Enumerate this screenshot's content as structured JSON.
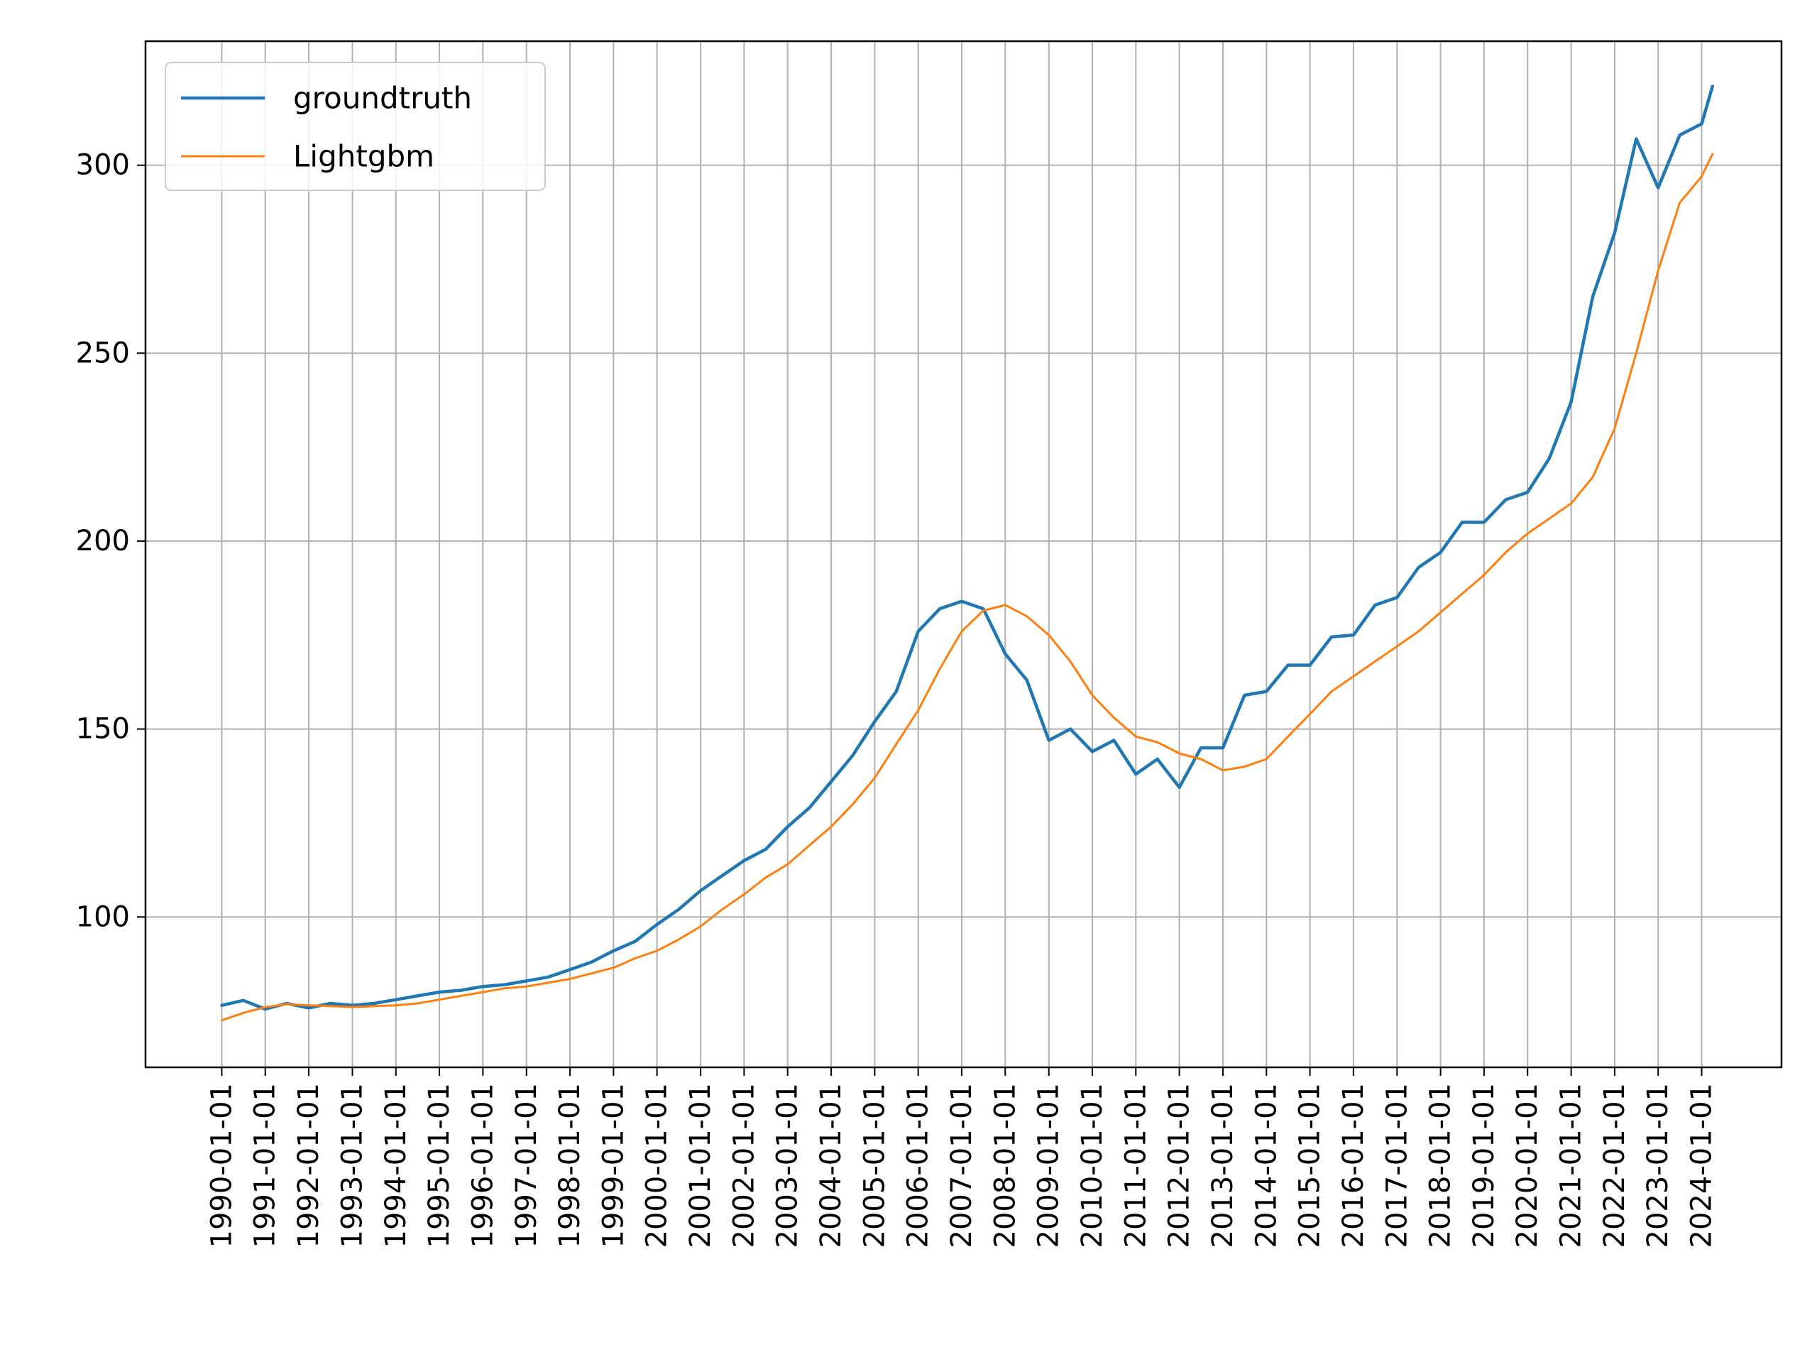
{
  "chart_data": {
    "type": "line",
    "title": "",
    "xlabel": "",
    "ylabel": "",
    "grid": true,
    "legend_position": "top-left",
    "xlim": [
      "1988-04-01",
      "2025-11-01"
    ],
    "ylim": [
      60,
      333
    ],
    "y_ticks": [
      100,
      150,
      200,
      250,
      300
    ],
    "x_ticks": [
      "1990-01-01",
      "1991-01-01",
      "1992-01-01",
      "1993-01-01",
      "1994-01-01",
      "1995-01-01",
      "1996-01-01",
      "1997-01-01",
      "1998-01-01",
      "1999-01-01",
      "2000-01-01",
      "2001-01-01",
      "2002-01-01",
      "2003-01-01",
      "2004-01-01",
      "2005-01-01",
      "2006-01-01",
      "2007-01-01",
      "2008-01-01",
      "2009-01-01",
      "2010-01-01",
      "2011-01-01",
      "2012-01-01",
      "2013-01-01",
      "2014-01-01",
      "2015-01-01",
      "2016-01-01",
      "2017-01-01",
      "2018-01-01",
      "2019-01-01",
      "2020-01-01",
      "2021-01-01",
      "2022-01-01",
      "2023-01-01",
      "2024-01-01"
    ],
    "series": [
      {
        "name": "groundtruth",
        "color": "#1f77b4",
        "points": [
          [
            "1990-01-01",
            76.5
          ],
          [
            "1990-07-01",
            77.8
          ],
          [
            "1991-01-01",
            75.5
          ],
          [
            "1991-07-01",
            77.0
          ],
          [
            "1992-01-01",
            75.8
          ],
          [
            "1992-07-01",
            77.0
          ],
          [
            "1993-01-01",
            76.5
          ],
          [
            "1993-07-01",
            77.0
          ],
          [
            "1994-01-01",
            78.0
          ],
          [
            "1994-07-01",
            79.0
          ],
          [
            "1995-01-01",
            80.0
          ],
          [
            "1995-07-01",
            80.5
          ],
          [
            "1996-01-01",
            81.5
          ],
          [
            "1996-07-01",
            82.0
          ],
          [
            "1997-01-01",
            83.0
          ],
          [
            "1997-07-01",
            84.0
          ],
          [
            "1998-01-01",
            86.0
          ],
          [
            "1998-07-01",
            88.0
          ],
          [
            "1999-01-01",
            91.0
          ],
          [
            "1999-07-01",
            93.5
          ],
          [
            "2000-01-01",
            98.0
          ],
          [
            "2000-07-01",
            102.0
          ],
          [
            "2001-01-01",
            107.0
          ],
          [
            "2001-07-01",
            111.0
          ],
          [
            "2002-01-01",
            115.0
          ],
          [
            "2002-07-01",
            118.0
          ],
          [
            "2003-01-01",
            124.0
          ],
          [
            "2003-07-01",
            129.0
          ],
          [
            "2004-01-01",
            136.0
          ],
          [
            "2004-07-01",
            143.0
          ],
          [
            "2005-01-01",
            152.0
          ],
          [
            "2005-07-01",
            160.0
          ],
          [
            "2006-01-01",
            176.0
          ],
          [
            "2006-07-01",
            182.0
          ],
          [
            "2007-01-01",
            184.0
          ],
          [
            "2007-07-01",
            182.0
          ],
          [
            "2008-01-01",
            170.0
          ],
          [
            "2008-07-01",
            163.0
          ],
          [
            "2009-01-01",
            147.0
          ],
          [
            "2009-07-01",
            150.0
          ],
          [
            "2010-01-01",
            144.0
          ],
          [
            "2010-07-01",
            147.0
          ],
          [
            "2011-01-01",
            138.0
          ],
          [
            "2011-07-01",
            142.0
          ],
          [
            "2012-01-01",
            134.5
          ],
          [
            "2012-07-01",
            145.0
          ],
          [
            "2013-01-01",
            145.0
          ],
          [
            "2013-07-01",
            159.0
          ],
          [
            "2014-01-01",
            160.0
          ],
          [
            "2014-07-01",
            167.0
          ],
          [
            "2015-01-01",
            167.0
          ],
          [
            "2015-07-01",
            174.5
          ],
          [
            "2016-01-01",
            175.0
          ],
          [
            "2016-07-01",
            183.0
          ],
          [
            "2017-01-01",
            185.0
          ],
          [
            "2017-07-01",
            193.0
          ],
          [
            "2018-01-01",
            197.0
          ],
          [
            "2018-07-01",
            205.0
          ],
          [
            "2019-01-01",
            205.0
          ],
          [
            "2019-07-01",
            211.0
          ],
          [
            "2020-01-01",
            213.0
          ],
          [
            "2020-07-01",
            222.0
          ],
          [
            "2021-01-01",
            237.0
          ],
          [
            "2021-07-01",
            265.0
          ],
          [
            "2022-01-01",
            282.0
          ],
          [
            "2022-07-01",
            307.0
          ],
          [
            "2023-01-01",
            294.0
          ],
          [
            "2023-07-01",
            308.0
          ],
          [
            "2024-01-01",
            311.0
          ],
          [
            "2024-04-01",
            321.0
          ]
        ]
      },
      {
        "name": "Lightgbm",
        "color": "#ff7f0e",
        "points": [
          [
            "1990-01-01",
            72.5
          ],
          [
            "1990-07-01",
            74.5
          ],
          [
            "1991-01-01",
            76.0
          ],
          [
            "1991-07-01",
            76.8
          ],
          [
            "1992-01-01",
            76.5
          ],
          [
            "1992-07-01",
            76.3
          ],
          [
            "1993-01-01",
            76.0
          ],
          [
            "1993-07-01",
            76.3
          ],
          [
            "1994-01-01",
            76.5
          ],
          [
            "1994-07-01",
            77.0
          ],
          [
            "1995-01-01",
            78.0
          ],
          [
            "1995-07-01",
            79.0
          ],
          [
            "1996-01-01",
            80.0
          ],
          [
            "1996-07-01",
            81.0
          ],
          [
            "1997-01-01",
            81.5
          ],
          [
            "1997-07-01",
            82.5
          ],
          [
            "1998-01-01",
            83.5
          ],
          [
            "1998-07-01",
            85.0
          ],
          [
            "1999-01-01",
            86.5
          ],
          [
            "1999-07-01",
            89.0
          ],
          [
            "2000-01-01",
            91.0
          ],
          [
            "2000-07-01",
            94.0
          ],
          [
            "2001-01-01",
            97.5
          ],
          [
            "2001-07-01",
            102.0
          ],
          [
            "2002-01-01",
            106.0
          ],
          [
            "2002-07-01",
            110.5
          ],
          [
            "2003-01-01",
            114.0
          ],
          [
            "2003-07-01",
            119.0
          ],
          [
            "2004-01-01",
            124.0
          ],
          [
            "2004-07-01",
            130.0
          ],
          [
            "2005-01-01",
            137.0
          ],
          [
            "2005-07-01",
            146.0
          ],
          [
            "2006-01-01",
            155.0
          ],
          [
            "2006-07-01",
            166.0
          ],
          [
            "2007-01-01",
            176.0
          ],
          [
            "2007-07-01",
            181.5
          ],
          [
            "2008-01-01",
            183.0
          ],
          [
            "2008-07-01",
            180.0
          ],
          [
            "2009-01-01",
            175.0
          ],
          [
            "2009-07-01",
            168.0
          ],
          [
            "2010-01-01",
            159.0
          ],
          [
            "2010-07-01",
            153.0
          ],
          [
            "2011-01-01",
            148.0
          ],
          [
            "2011-07-01",
            146.5
          ],
          [
            "2012-01-01",
            143.5
          ],
          [
            "2012-07-01",
            142.0
          ],
          [
            "2013-01-01",
            139.0
          ],
          [
            "2013-07-01",
            140.0
          ],
          [
            "2014-01-01",
            142.0
          ],
          [
            "2014-07-01",
            148.0
          ],
          [
            "2015-01-01",
            154.0
          ],
          [
            "2015-07-01",
            160.0
          ],
          [
            "2016-01-01",
            164.0
          ],
          [
            "2016-07-01",
            168.0
          ],
          [
            "2017-01-01",
            172.0
          ],
          [
            "2017-07-01",
            176.0
          ],
          [
            "2018-01-01",
            181.0
          ],
          [
            "2018-07-01",
            186.0
          ],
          [
            "2019-01-01",
            191.0
          ],
          [
            "2019-07-01",
            197.0
          ],
          [
            "2020-01-01",
            202.0
          ],
          [
            "2020-07-01",
            206.0
          ],
          [
            "2021-01-01",
            210.0
          ],
          [
            "2021-07-01",
            217.0
          ],
          [
            "2022-01-01",
            230.0
          ],
          [
            "2022-07-01",
            250.0
          ],
          [
            "2023-01-01",
            272.0
          ],
          [
            "2023-07-01",
            290.0
          ],
          [
            "2024-01-01",
            297.0
          ],
          [
            "2024-04-01",
            303.0
          ]
        ]
      }
    ]
  }
}
